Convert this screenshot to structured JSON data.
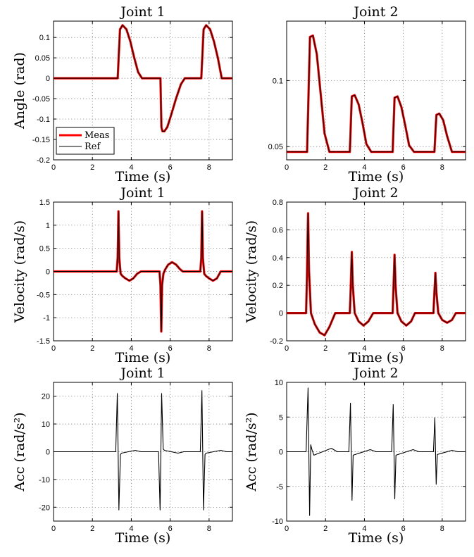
{
  "chart_data": [
    {
      "type": "line",
      "title": "Joint 1",
      "xlabel": "Time (s)",
      "ylabel": "Angle (rad)",
      "xlim": [
        0,
        9.2
      ],
      "ylim": [
        -0.2,
        0.14
      ],
      "xticks": [
        0,
        2,
        4,
        6,
        8
      ],
      "yticks": [
        -0.2,
        -0.15,
        -0.1,
        -0.05,
        0,
        0.05,
        0.1
      ],
      "ytick_labels": [
        "-0.2",
        "-0.15",
        "-0.1",
        "-0.05",
        "0",
        "0.05",
        "0.1"
      ],
      "grid": true,
      "legend": {
        "position": "bottom-left",
        "entries": [
          "Meas",
          "Ref"
        ]
      },
      "series": [
        {
          "name": "Meas",
          "color": "#ff0000",
          "x": [
            0,
            3.3,
            3.42,
            3.55,
            3.75,
            3.95,
            4.15,
            4.35,
            4.55,
            5.5,
            5.55,
            5.6,
            5.7,
            5.85,
            6.05,
            6.3,
            6.55,
            6.75,
            7.6,
            7.72,
            7.85,
            8.05,
            8.25,
            8.45,
            8.65,
            9.2
          ],
          "y": [
            0,
            0,
            0.12,
            0.13,
            0.12,
            0.09,
            0.05,
            0.015,
            0,
            0,
            -0.12,
            -0.13,
            -0.13,
            -0.12,
            -0.09,
            -0.05,
            -0.015,
            0,
            0,
            0.12,
            0.13,
            0.12,
            0.09,
            0.05,
            0,
            0
          ]
        },
        {
          "name": "Ref",
          "color": "#000000",
          "x": [
            0,
            3.3,
            3.42,
            3.55,
            3.75,
            3.95,
            4.15,
            4.35,
            4.55,
            5.5,
            5.55,
            5.6,
            5.7,
            5.85,
            6.05,
            6.3,
            6.55,
            6.75,
            7.6,
            7.72,
            7.85,
            8.05,
            8.25,
            8.45,
            8.65,
            9.2
          ],
          "y": [
            0,
            0,
            0.12,
            0.13,
            0.12,
            0.09,
            0.05,
            0.015,
            0,
            0,
            -0.12,
            -0.13,
            -0.13,
            -0.12,
            -0.09,
            -0.05,
            -0.015,
            0,
            0,
            0.12,
            0.13,
            0.12,
            0.09,
            0.05,
            0,
            0
          ]
        }
      ]
    },
    {
      "type": "line",
      "title": "Joint 2",
      "xlabel": "Time (s)",
      "ylabel": "",
      "xlim": [
        0,
        9.2
      ],
      "ylim": [
        0.04,
        0.145
      ],
      "xticks": [
        0,
        2,
        4,
        6,
        8
      ],
      "yticks": [
        0.05,
        0.1
      ],
      "ytick_labels": [
        "0.05",
        "0.1"
      ],
      "grid": true,
      "series": [
        {
          "name": "Meas",
          "color": "#ff0000",
          "x": [
            0,
            1.05,
            1.2,
            1.35,
            1.55,
            1.75,
            1.95,
            2.2,
            3.25,
            3.35,
            3.5,
            3.7,
            3.9,
            4.1,
            4.35,
            5.45,
            5.55,
            5.7,
            5.9,
            6.1,
            6.3,
            6.55,
            7.6,
            7.7,
            7.85,
            8.05,
            8.25,
            8.5,
            9.2
          ],
          "y": [
            0.046,
            0.046,
            0.133,
            0.134,
            0.12,
            0.09,
            0.06,
            0.046,
            0.046,
            0.088,
            0.089,
            0.082,
            0.068,
            0.052,
            0.046,
            0.046,
            0.087,
            0.088,
            0.08,
            0.066,
            0.051,
            0.046,
            0.046,
            0.074,
            0.075,
            0.07,
            0.058,
            0.046,
            0.046
          ]
        },
        {
          "name": "Ref",
          "color": "#000000",
          "x": [
            0,
            1.05,
            1.2,
            1.35,
            1.55,
            1.75,
            1.95,
            2.2,
            3.25,
            3.35,
            3.5,
            3.7,
            3.9,
            4.1,
            4.35,
            5.45,
            5.55,
            5.7,
            5.9,
            6.1,
            6.3,
            6.55,
            7.6,
            7.7,
            7.85,
            8.05,
            8.25,
            8.5,
            9.2
          ],
          "y": [
            0.046,
            0.046,
            0.133,
            0.134,
            0.12,
            0.09,
            0.06,
            0.046,
            0.046,
            0.088,
            0.089,
            0.082,
            0.068,
            0.052,
            0.046,
            0.046,
            0.087,
            0.088,
            0.08,
            0.066,
            0.051,
            0.046,
            0.046,
            0.074,
            0.075,
            0.07,
            0.058,
            0.046,
            0.046
          ]
        }
      ]
    },
    {
      "type": "line",
      "title": "Joint 1",
      "xlabel": "Time (s)",
      "ylabel": "Velocity (rad/s)",
      "xlim": [
        0,
        9.2
      ],
      "ylim": [
        -1.5,
        1.5
      ],
      "xticks": [
        0,
        2,
        4,
        6,
        8
      ],
      "yticks": [
        -1.5,
        -1,
        -0.5,
        0,
        0.5,
        1,
        1.5
      ],
      "ytick_labels": [
        "-1.5",
        "-1",
        "-0.5",
        "0",
        "0.5",
        "1",
        "1.5"
      ],
      "grid": true,
      "series": [
        {
          "name": "Meas",
          "color": "#ff0000",
          "x": [
            0,
            3.25,
            3.3,
            3.34,
            3.38,
            3.45,
            3.55,
            3.7,
            3.9,
            4.1,
            4.3,
            4.5,
            5.45,
            5.5,
            5.54,
            5.58,
            5.65,
            5.75,
            5.9,
            6.1,
            6.3,
            6.5,
            6.65,
            6.8,
            7.55,
            7.6,
            7.64,
            7.68,
            7.75,
            7.85,
            8.0,
            8.2,
            8.4,
            8.6,
            9.2
          ],
          "y": [
            0,
            0,
            0.3,
            1.3,
            0.3,
            -0.05,
            -0.1,
            -0.15,
            -0.2,
            -0.15,
            -0.05,
            0,
            0,
            -0.3,
            -1.3,
            -0.3,
            -0.05,
            0.05,
            0.15,
            0.2,
            0.15,
            0.05,
            0,
            0,
            0,
            0.3,
            1.3,
            0.3,
            -0.05,
            -0.1,
            -0.15,
            -0.2,
            -0.15,
            0,
            0
          ]
        },
        {
          "name": "Ref",
          "color": "#000000",
          "x": [
            0,
            3.25,
            3.3,
            3.34,
            3.38,
            3.45,
            3.55,
            3.7,
            3.9,
            4.1,
            4.3,
            4.5,
            5.45,
            5.5,
            5.54,
            5.58,
            5.65,
            5.75,
            5.9,
            6.1,
            6.3,
            6.5,
            6.65,
            6.8,
            7.55,
            7.6,
            7.64,
            7.68,
            7.75,
            7.85,
            8.0,
            8.2,
            8.4,
            8.6,
            9.2
          ],
          "y": [
            0,
            0,
            0.3,
            1.3,
            0.3,
            -0.05,
            -0.1,
            -0.15,
            -0.2,
            -0.15,
            -0.05,
            0,
            0,
            -0.3,
            -1.3,
            -0.3,
            -0.05,
            0.05,
            0.15,
            0.2,
            0.15,
            0.05,
            0,
            0,
            0,
            0.3,
            1.3,
            0.3,
            -0.05,
            -0.1,
            -0.15,
            -0.2,
            -0.15,
            0,
            0
          ]
        }
      ]
    },
    {
      "type": "line",
      "title": "Joint 2",
      "xlabel": "Time (s)",
      "ylabel": "Velocity (rad/s)",
      "xlim": [
        0,
        9.2
      ],
      "ylim": [
        -0.2,
        0.8
      ],
      "xticks": [
        0,
        2,
        4,
        6,
        8
      ],
      "yticks": [
        -0.2,
        0,
        0.2,
        0.4,
        0.6,
        0.8
      ],
      "ytick_labels": [
        "-0.2",
        "0",
        "0.2",
        "0.4",
        "0.6",
        "0.8"
      ],
      "grid": true,
      "series": [
        {
          "name": "Meas",
          "color": "#ff0000",
          "x": [
            0,
            1.0,
            1.05,
            1.1,
            1.15,
            1.25,
            1.45,
            1.7,
            1.95,
            2.2,
            2.5,
            3.25,
            3.3,
            3.35,
            3.4,
            3.5,
            3.7,
            3.95,
            4.2,
            4.45,
            5.45,
            5.5,
            5.55,
            5.6,
            5.7,
            5.9,
            6.15,
            6.4,
            6.6,
            7.55,
            7.6,
            7.65,
            7.7,
            7.8,
            8.0,
            8.25,
            8.5,
            8.7,
            9.2
          ],
          "y": [
            0,
            0,
            0.3,
            0.72,
            0.3,
            0,
            -0.08,
            -0.14,
            -0.16,
            -0.1,
            0,
            0,
            0.2,
            0.44,
            0.2,
            0,
            -0.06,
            -0.09,
            -0.06,
            0,
            0,
            0.2,
            0.42,
            0.2,
            0,
            -0.06,
            -0.09,
            -0.06,
            0,
            0,
            0.15,
            0.29,
            0.15,
            0,
            -0.05,
            -0.07,
            -0.05,
            0,
            0
          ]
        },
        {
          "name": "Ref",
          "color": "#000000",
          "x": [
            0,
            1.0,
            1.05,
            1.1,
            1.15,
            1.25,
            1.45,
            1.7,
            1.95,
            2.2,
            2.5,
            3.25,
            3.3,
            3.35,
            3.4,
            3.5,
            3.7,
            3.95,
            4.2,
            4.45,
            5.45,
            5.5,
            5.55,
            5.6,
            5.7,
            5.9,
            6.15,
            6.4,
            6.6,
            7.55,
            7.6,
            7.65,
            7.7,
            7.8,
            8.0,
            8.25,
            8.5,
            8.7,
            9.2
          ],
          "y": [
            0,
            0,
            0.3,
            0.72,
            0.3,
            0,
            -0.08,
            -0.14,
            -0.16,
            -0.1,
            0,
            0,
            0.2,
            0.44,
            0.2,
            0,
            -0.06,
            -0.09,
            -0.06,
            0,
            0,
            0.2,
            0.42,
            0.2,
            0,
            -0.06,
            -0.09,
            -0.06,
            0,
            0,
            0.15,
            0.29,
            0.15,
            0,
            -0.05,
            -0.07,
            -0.05,
            0,
            0
          ]
        }
      ]
    },
    {
      "type": "line",
      "title": "Joint 1",
      "xlabel": "Time (s)",
      "ylabel": "Acc (rad/s²)",
      "xlim": [
        0,
        9.2
      ],
      "ylim": [
        -25,
        25
      ],
      "xticks": [
        0,
        2,
        4,
        6,
        8
      ],
      "yticks": [
        -20,
        -10,
        0,
        10,
        20
      ],
      "ytick_labels": [
        "-20",
        "-10",
        "0",
        "10",
        "20"
      ],
      "grid": true,
      "series": [
        {
          "name": "Ref",
          "color": "#000000",
          "x": [
            0,
            3.2,
            3.28,
            3.36,
            3.44,
            3.5,
            4.2,
            4.5,
            5.4,
            5.48,
            5.56,
            5.64,
            5.7,
            6.4,
            6.7,
            7.55,
            7.63,
            7.71,
            7.79,
            7.85,
            8.6,
            8.9,
            9.2
          ],
          "y": [
            0,
            0,
            21,
            -21,
            -1,
            -0.5,
            0.5,
            0,
            0,
            -21,
            21,
            1,
            0.5,
            -0.5,
            0,
            0,
            22,
            -21,
            -1,
            -0.5,
            0.5,
            0,
            0
          ]
        }
      ]
    },
    {
      "type": "line",
      "title": "Joint 2",
      "xlabel": "Time (s)",
      "ylabel": "Acc (rad/s²)",
      "xlim": [
        0,
        9.2
      ],
      "ylim": [
        -10,
        10
      ],
      "xticks": [
        0,
        2,
        4,
        6,
        8
      ],
      "yticks": [
        -10,
        -5,
        0,
        5,
        10
      ],
      "ytick_labels": [
        "-10",
        "-5",
        "0",
        "5",
        "10"
      ],
      "grid": true,
      "series": [
        {
          "name": "Ref",
          "color": "#000000",
          "x": [
            0,
            1.0,
            1.1,
            1.18,
            1.24,
            1.3,
            1.4,
            2.3,
            2.6,
            3.2,
            3.28,
            3.36,
            3.42,
            4.3,
            4.6,
            5.4,
            5.48,
            5.56,
            5.62,
            6.5,
            6.8,
            7.55,
            7.62,
            7.69,
            7.75,
            8.5,
            8.8,
            9.2
          ],
          "y": [
            0,
            0,
            9.2,
            -9.2,
            1.0,
            0.3,
            -0.5,
            0.5,
            0,
            0,
            7,
            -7,
            -0.5,
            0.3,
            0,
            0,
            6.8,
            -6.8,
            -0.5,
            0.3,
            0,
            0,
            4.9,
            -4.7,
            -0.4,
            0.2,
            0,
            0
          ]
        }
      ]
    }
  ]
}
